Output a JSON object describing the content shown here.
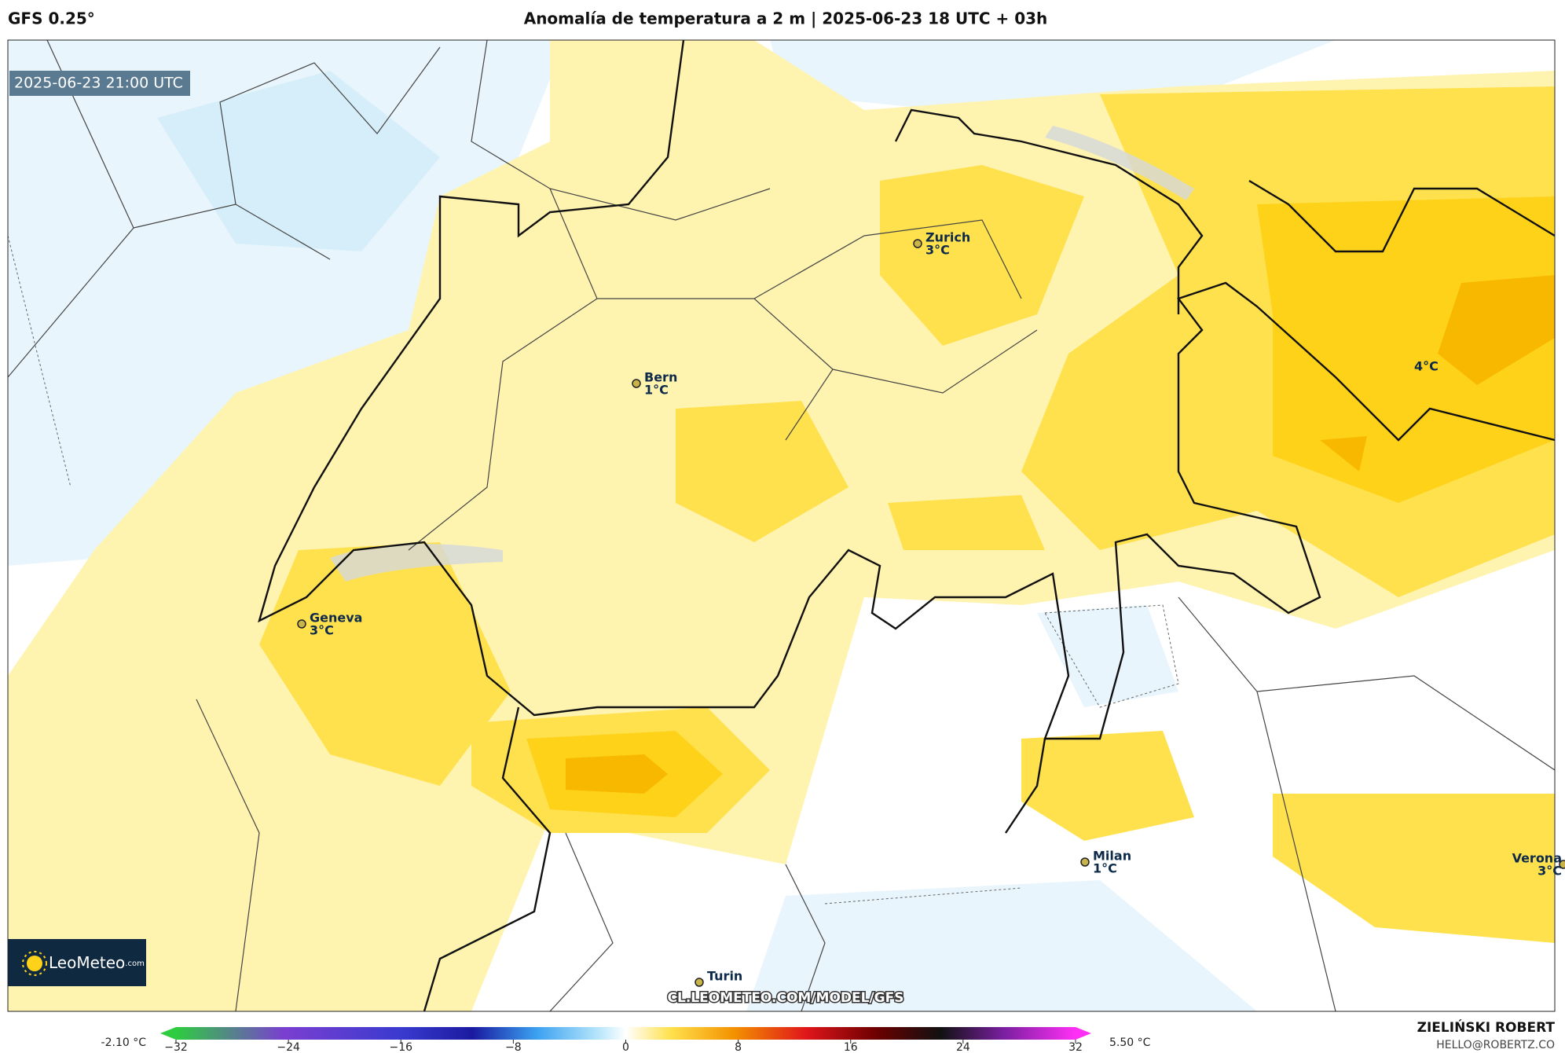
{
  "header": {
    "model": "GFS 0.25°",
    "title": "Anomalía de temperatura a 2 m | 2025-06-23 18 UTC + 03h"
  },
  "timestamp": "2025-06-23 21:00 UTC",
  "map": {
    "cities": [
      {
        "name": "Zurich",
        "label": "3°C"
      },
      {
        "name": "Bern",
        "label": "1°C"
      },
      {
        "name": "Geneva",
        "label": "3°C"
      },
      {
        "name": "Milan",
        "label": "1°C"
      },
      {
        "name": "Verona",
        "label": "3°C"
      },
      {
        "name": "Turin"
      }
    ],
    "max_label": "4°C",
    "watermark": "CL.LEOMETEO.COM/MODEL/GFS",
    "logo": {
      "name": "LeoMeteo",
      "suffix": ".com"
    }
  },
  "colorbar": {
    "min_label": "-2.10 °C",
    "max_label": "5.50 °C",
    "lim": [
      -32,
      32
    ],
    "ticks": [
      {
        "value": -32,
        "label": "−32"
      },
      {
        "value": -24,
        "label": "−24"
      },
      {
        "value": -16,
        "label": "−16"
      },
      {
        "value": -8,
        "label": "−8"
      },
      0,
      8,
      16,
      24,
      32
    ]
  },
  "footer": {
    "author": "ZIELIŃSKI ROBERT",
    "email": "HELLO@ROBERTZ.CO"
  }
}
